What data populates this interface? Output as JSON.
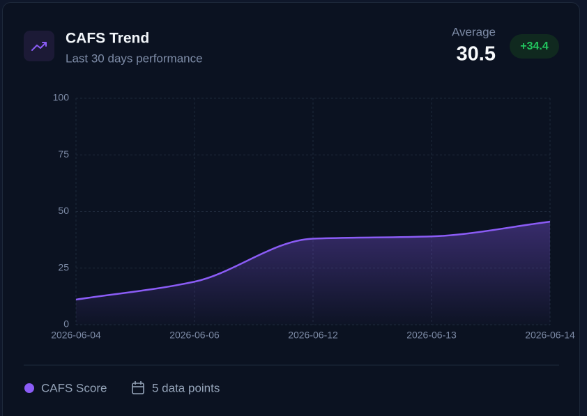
{
  "chart_data": {
    "type": "line",
    "title": "CAFS Trend",
    "subtitle": "Last 30 days performance",
    "average_label": "Average",
    "average_value": 30.5,
    "change": "+34.4",
    "point_count": "5 data points",
    "categories": [
      "2026-06-04",
      "2026-06-06",
      "2026-06-12",
      "2026-06-13",
      "2026-06-14"
    ],
    "series": [
      {
        "name": "CAFS Score",
        "color": "#8b5cf6",
        "values": [
          11.1,
          19,
          38,
          39,
          45.5
        ]
      }
    ],
    "ylim": [
      0,
      100
    ],
    "yticks": [
      0,
      25,
      50,
      75,
      100
    ],
    "grid": true
  }
}
